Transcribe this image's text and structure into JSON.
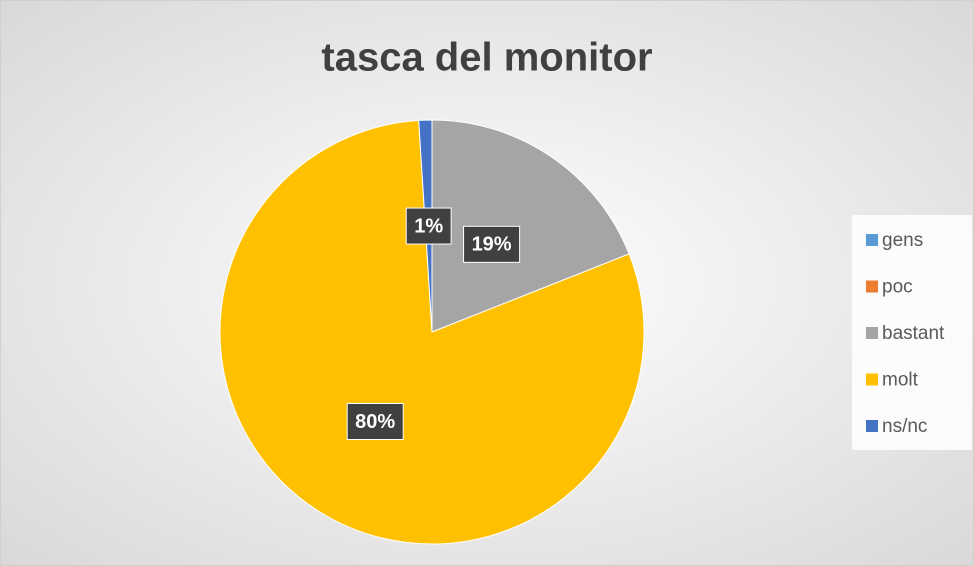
{
  "chart_data": {
    "type": "pie",
    "title": "tasca del monitor",
    "categories": [
      "gens",
      "poc",
      "bastant",
      "molt",
      "ns/nc"
    ],
    "values": [
      0,
      0,
      19,
      80,
      1
    ],
    "value_labels": [
      null,
      null,
      "19%",
      "80%",
      "1%"
    ],
    "colors": [
      "#5b9bd5",
      "#ed7d31",
      "#a5a5a5",
      "#ffc000",
      "#4472c4"
    ],
    "legend": "right"
  }
}
